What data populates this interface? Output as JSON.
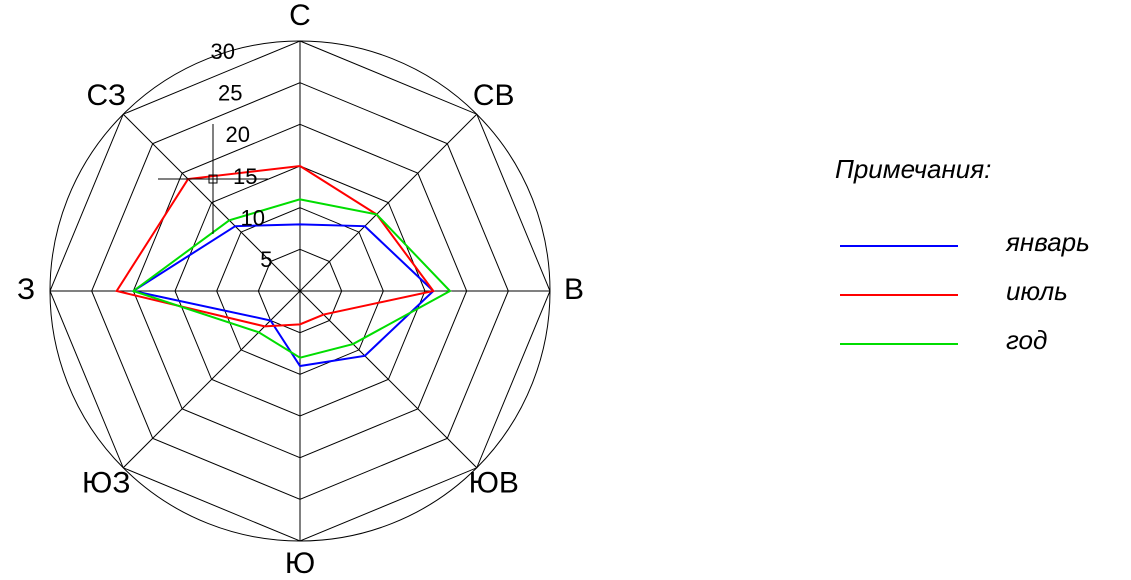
{
  "chart_data": {
    "type": "radar",
    "directions": [
      "С",
      "СВ",
      "В",
      "ЮВ",
      "Ю",
      "ЮЗ",
      "З",
      "СЗ"
    ],
    "rings": [
      5,
      10,
      15,
      20,
      25,
      30
    ],
    "ring_labels": [
      "5",
      "10",
      "15",
      "20",
      "25",
      "30"
    ],
    "outer_circle_value": 30,
    "rlim": [
      0,
      30
    ],
    "series": [
      {
        "name": "январь",
        "color": "#0000ff",
        "values": [
          8,
          11,
          16,
          11,
          9,
          5,
          20,
          11
        ]
      },
      {
        "name": "июль",
        "color": "#ff0000",
        "values": [
          15,
          13,
          16,
          4,
          4,
          6,
          22,
          19
        ]
      },
      {
        "name": "год",
        "color": "#00dd00",
        "values": [
          11,
          13,
          18,
          9,
          8,
          7,
          20,
          12
        ]
      }
    ],
    "legend": {
      "title": "Примечания:",
      "placement": "right"
    },
    "annotations": [
      "crosshair-cursor"
    ]
  }
}
